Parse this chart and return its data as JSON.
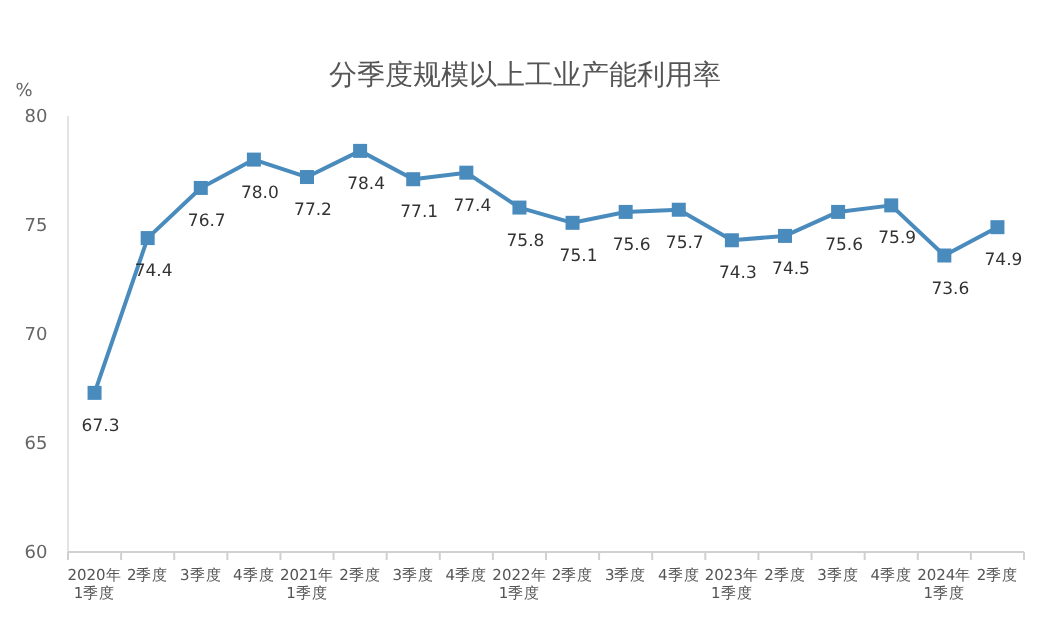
{
  "chart_data": {
    "type": "line",
    "title": "分季度规模以上工业产能利用率",
    "ylabel": "%",
    "categories": [
      "2020年\n1季度",
      "2季度",
      "3季度",
      "4季度",
      "2021年\n1季度",
      "2季度",
      "3季度",
      "4季度",
      "2022年\n1季度",
      "2季度",
      "3季度",
      "4季度",
      "2023年\n1季度",
      "2季度",
      "3季度",
      "4季度",
      "2024年\n1季度",
      "2季度"
    ],
    "series": [
      {
        "color": "#4a8bbd",
        "values": [
          67.3,
          74.4,
          76.7,
          78.0,
          77.2,
          78.4,
          77.1,
          77.4,
          75.8,
          75.1,
          75.6,
          75.7,
          74.3,
          74.5,
          75.6,
          75.9,
          73.6,
          74.9
        ]
      }
    ],
    "ylim": [
      60,
      80
    ],
    "yticks": [
      60,
      65,
      70,
      75,
      80
    ],
    "value_labels": [
      "67.3",
      "74.4",
      "76.7",
      "78.0",
      "77.2",
      "78.4",
      "77.1",
      "77.4",
      "75.8",
      "75.1",
      "75.6",
      "75.7",
      "74.3",
      "74.5",
      "75.6",
      "75.9",
      "73.6",
      "74.9"
    ],
    "marker": "square",
    "grid": false
  }
}
